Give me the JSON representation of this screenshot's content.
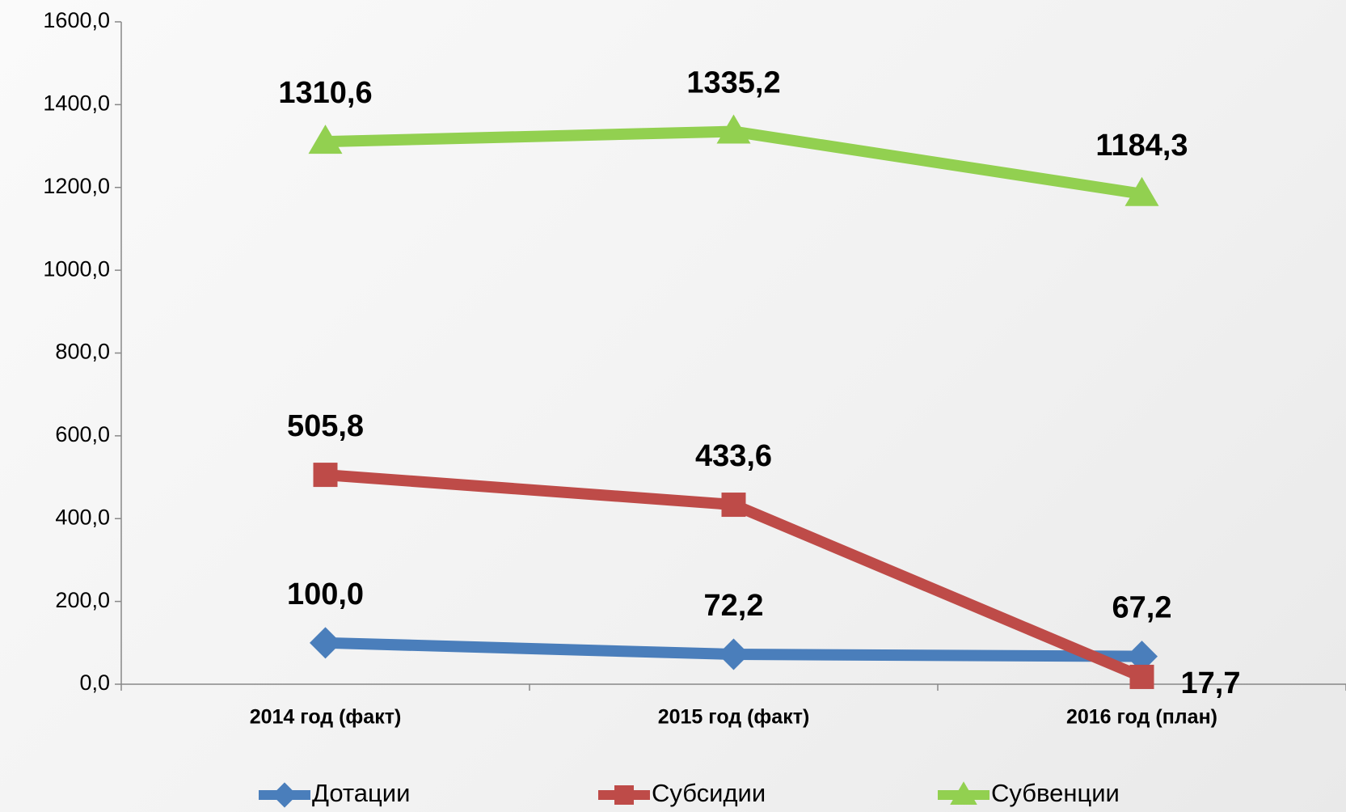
{
  "chart_data": {
    "type": "line",
    "categories": [
      "2014 год (факт)",
      "2015 год (факт)",
      "2016 год (план)"
    ],
    "series": [
      {
        "name": "Дотации",
        "color": "#4a7ebb",
        "marker": "diamond",
        "values": [
          100.0,
          72.2,
          67.2
        ],
        "value_labels": [
          "100,0",
          "72,2",
          "67,2"
        ]
      },
      {
        "name": "Субсидии",
        "color": "#be4b48",
        "marker": "square",
        "values": [
          505.8,
          433.6,
          17.7
        ],
        "value_labels": [
          "505,8",
          "433,6",
          "17,7"
        ]
      },
      {
        "name": "Субвенции",
        "color": "#92d050",
        "marker": "triangle",
        "values": [
          1310.6,
          1335.2,
          1184.3
        ],
        "value_labels": [
          "1310,6",
          "1335,2",
          "1184,3"
        ]
      }
    ],
    "ylim": [
      0,
      1600
    ],
    "yticks": [
      {
        "value": 0,
        "label": "0,0"
      },
      {
        "value": 200,
        "label": "200,0"
      },
      {
        "value": 400,
        "label": "400,0"
      },
      {
        "value": 600,
        "label": "600,0"
      },
      {
        "value": 800,
        "label": "800,0"
      },
      {
        "value": 1000,
        "label": "1000,0"
      },
      {
        "value": 1200,
        "label": "1200,0"
      },
      {
        "value": 1400,
        "label": "1400,0"
      },
      {
        "value": 1600,
        "label": "1600,0"
      }
    ],
    "grid": false
  }
}
